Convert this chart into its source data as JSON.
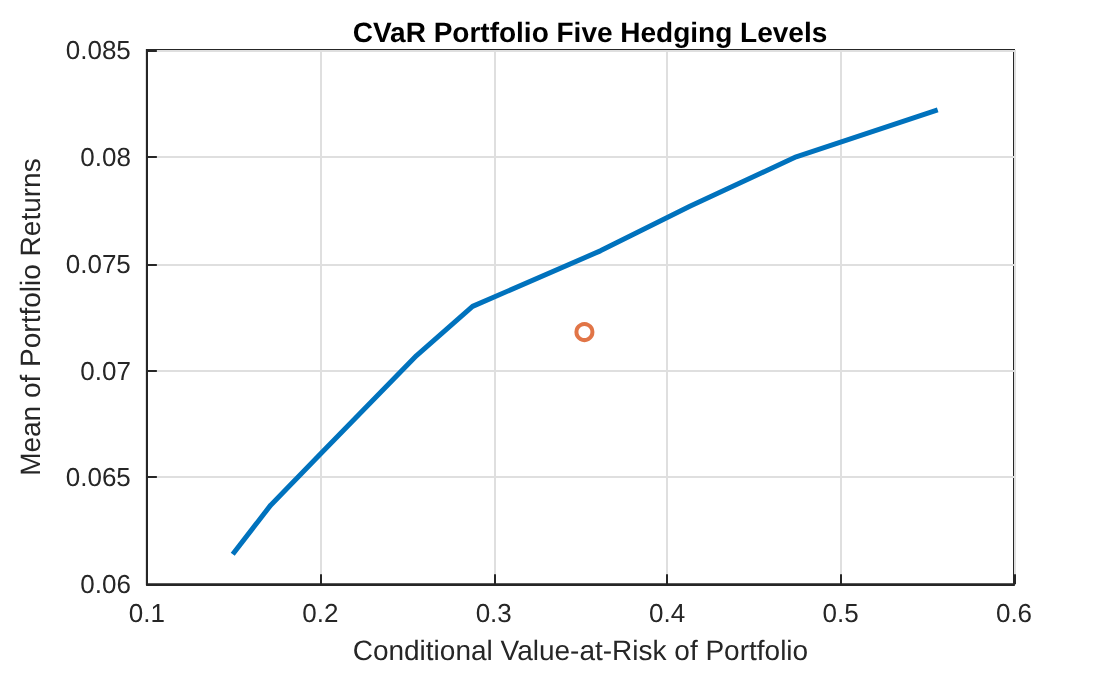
{
  "chart_data": {
    "type": "line",
    "title": "CVaR Portfolio Five Hedging Levels",
    "xlabel": "Conditional Value-at-Risk of Portfolio",
    "ylabel": "Mean of Portfolio Returns",
    "xlim": [
      0.1,
      0.6
    ],
    "xticks": [
      0.1,
      0.2,
      0.3,
      0.4,
      0.5,
      0.6
    ],
    "ylim": [
      0.06,
      0.085
    ],
    "yticks": [
      0.06,
      0.065,
      0.07,
      0.075,
      0.08,
      0.085
    ],
    "grid": true,
    "series": [
      {
        "color": "#0072bd",
        "marker": "none",
        "x": [
          0.1495,
          0.1714,
          0.2002,
          0.2555,
          0.2878,
          0.3615,
          0.4134,
          0.4744,
          0.556
        ],
        "values": [
          0.0614,
          0.0637,
          0.0661,
          0.0707,
          0.073,
          0.0756,
          0.0777,
          0.08,
          0.0822
        ]
      },
      {
        "type": "scatter",
        "color": "#d95319",
        "marker": "circle",
        "x": [
          0.3523
        ],
        "values": [
          0.0718
        ]
      }
    ]
  }
}
